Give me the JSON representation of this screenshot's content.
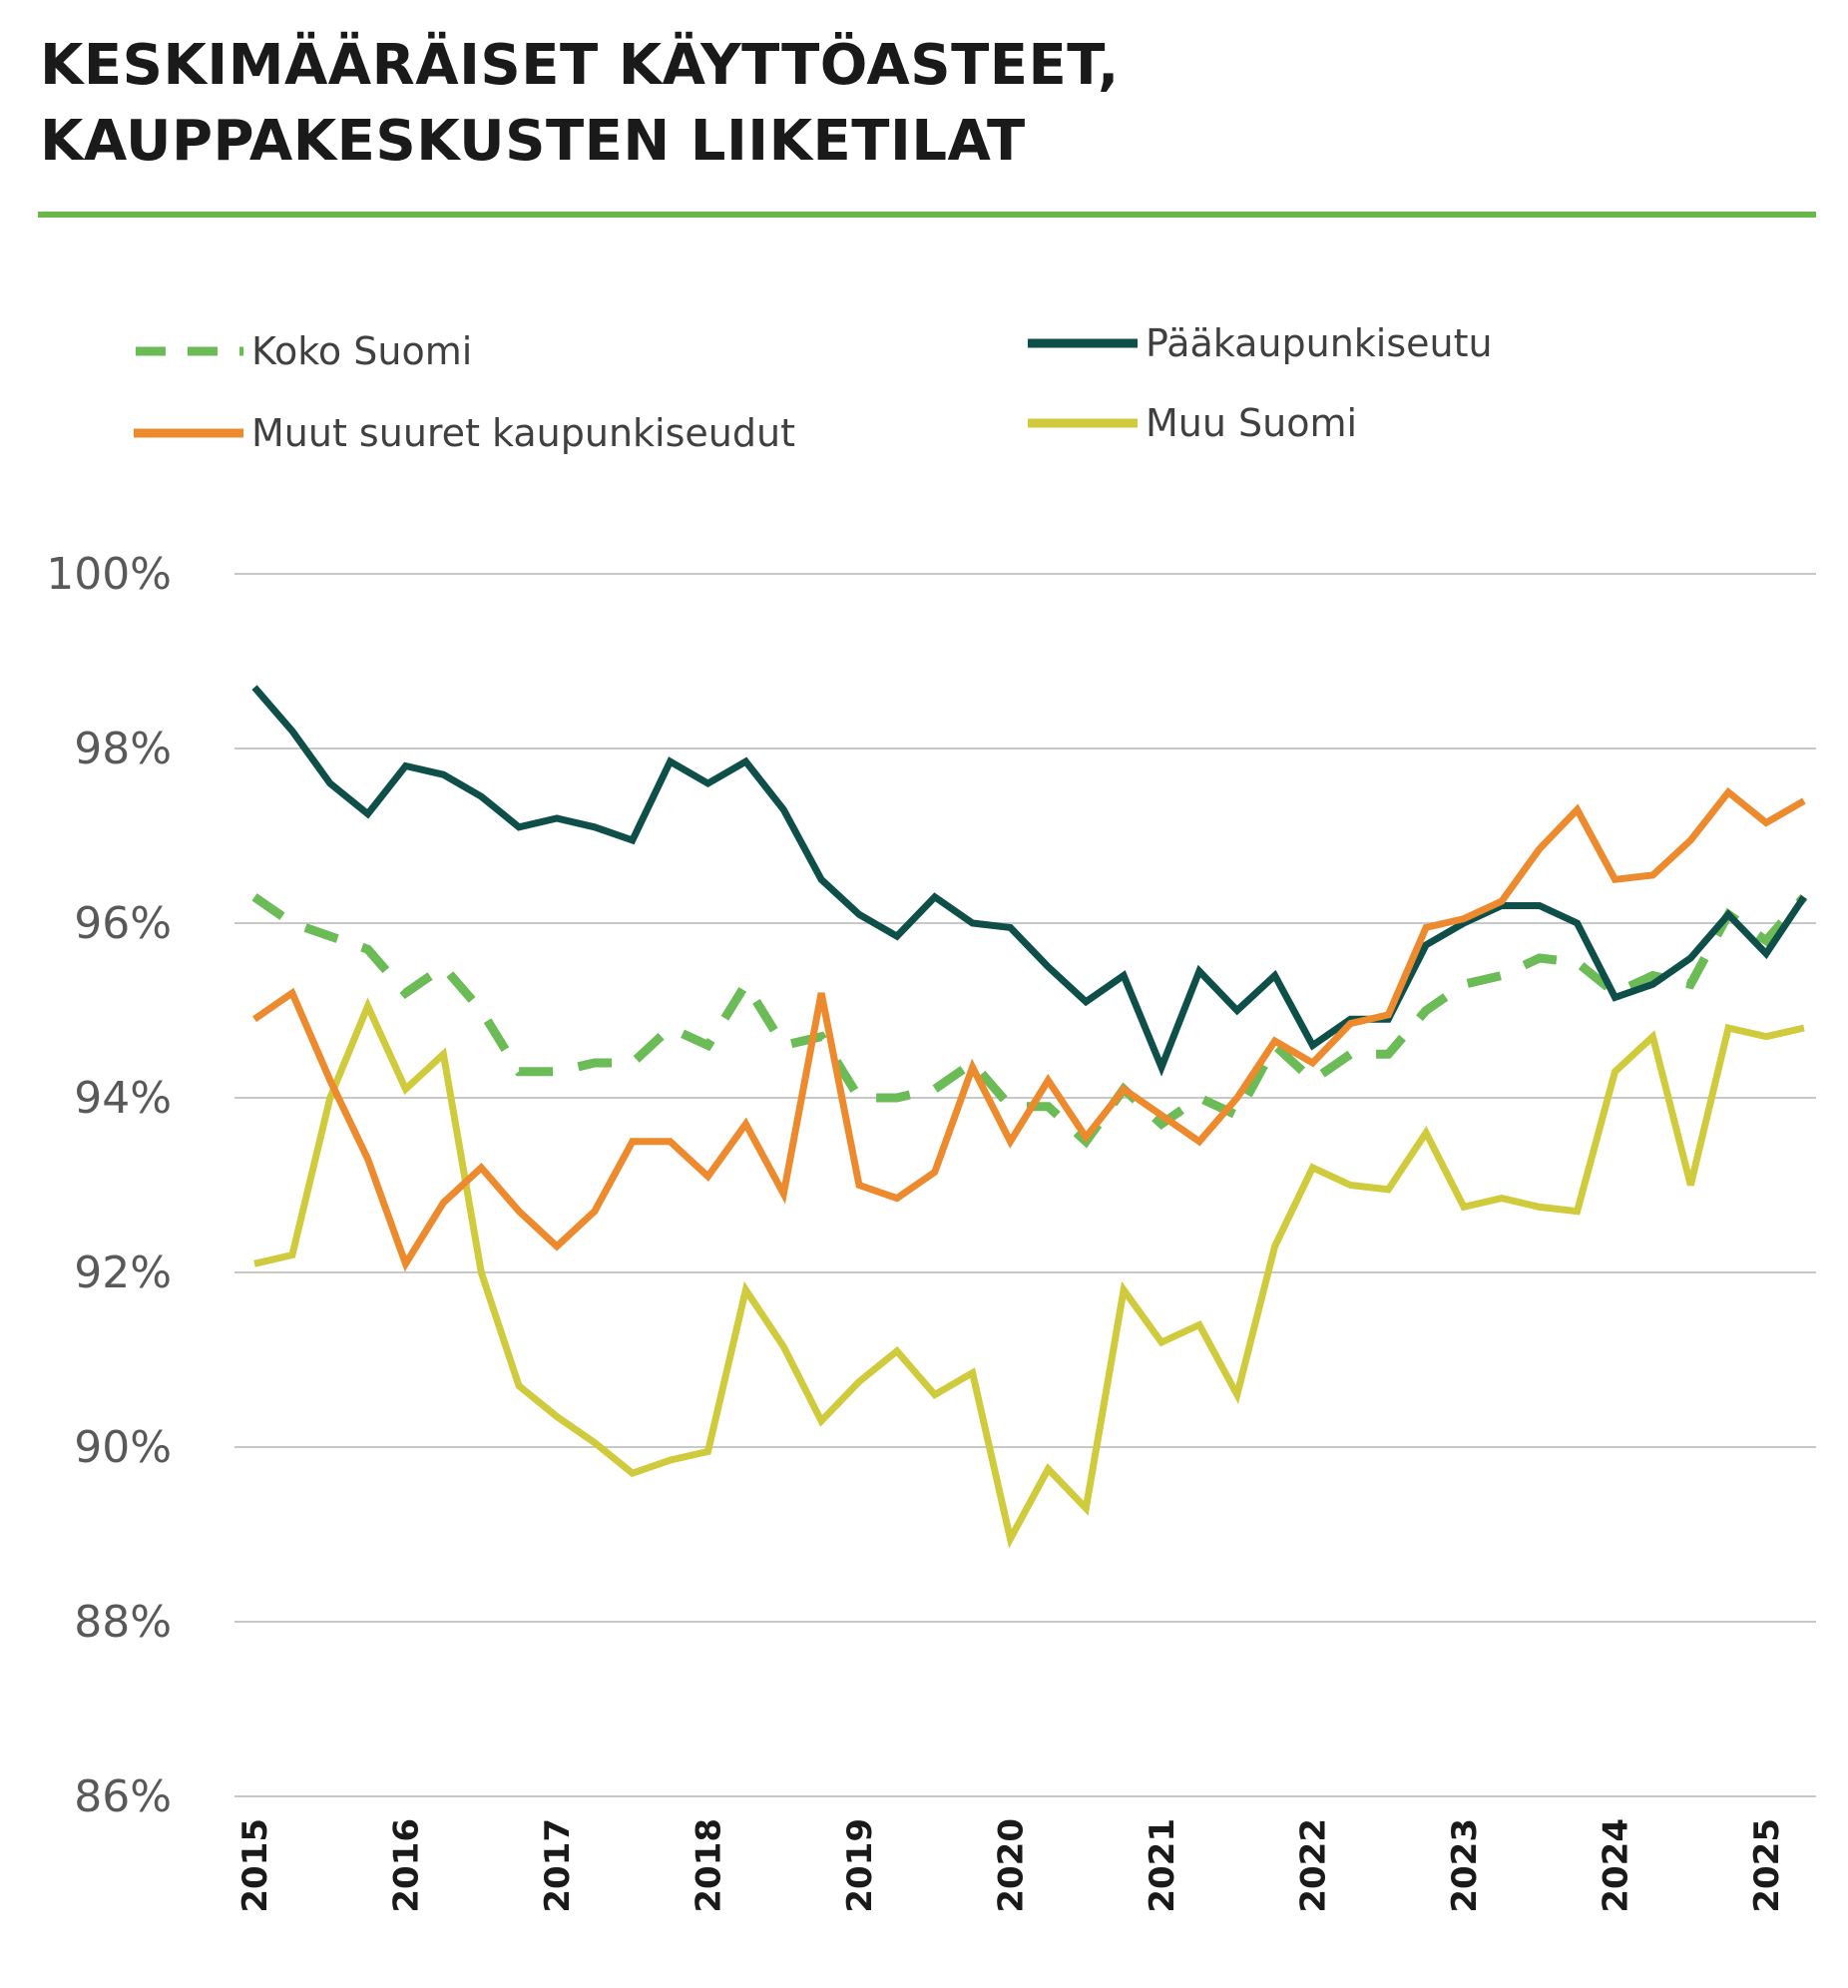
{
  "title_lines": [
    "KESKIMÄÄRÄISET KÄYTTÖASTEET,",
    "KAUPPAKESKUSTEN LIIKETILAT"
  ],
  "colors": {
    "rule": "#6ab84a",
    "grid": "#c8c8c8",
    "koko_suomi": "#6bbb57",
    "paakaupunkiseutu": "#0f4f4a",
    "muut_suuret": "#ec8a2d",
    "muu_suomi": "#cfcb3c"
  },
  "chart_data": {
    "type": "line",
    "title": "KESKIMÄÄRÄISET KÄYTTÖASTEET, KAUPPAKESKUSTEN LIIKETILAT",
    "xlabel": "",
    "ylabel": "",
    "x_tick_labels": [
      "2015",
      "2016",
      "2017",
      "2018",
      "2019",
      "2020",
      "2021",
      "2022",
      "2023",
      "2024",
      "2025"
    ],
    "y_tick_labels": [
      "86%",
      "88%",
      "90%",
      "92%",
      "94%",
      "96%",
      "98%",
      "100%"
    ],
    "ylim": [
      86,
      100
    ],
    "xlim": [
      2015,
      2026.05
    ],
    "grid": true,
    "legend_position": "top",
    "series": [
      {
        "name": "Koko Suomi",
        "key": "koko_suomi",
        "style": "dashed",
        "x": [
          2015.0,
          2015.25,
          2015.75,
          2016.0,
          2016.25,
          2016.5,
          2016.75,
          2017.0,
          2017.25,
          2017.5,
          2017.75,
          2018.0,
          2018.25,
          2018.5,
          2018.75,
          2019.0,
          2019.25,
          2019.5,
          2019.75,
          2020.0,
          2020.25,
          2020.5,
          2020.75,
          2021.0,
          2021.25,
          2021.5,
          2021.75,
          2022.0,
          2022.25,
          2022.5,
          2022.75,
          2023.0,
          2023.25,
          2023.5,
          2023.75,
          2024.0,
          2024.25,
          2024.5,
          2024.75,
          2025.0,
          2025.25
        ],
        "values": [
          96.3,
          96.0,
          95.7,
          95.2,
          95.5,
          95.0,
          94.3,
          94.3,
          94.4,
          94.4,
          94.8,
          94.6,
          95.3,
          94.6,
          94.7,
          94.0,
          94.0,
          94.1,
          94.4,
          93.9,
          93.9,
          93.5,
          94.1,
          93.7,
          94.0,
          93.8,
          94.6,
          94.2,
          94.5,
          94.5,
          95.0,
          95.3,
          95.4,
          95.6,
          95.55,
          95.2,
          95.4,
          95.3,
          96.1,
          95.8,
          96.3
        ]
      },
      {
        "name": "Pääkaupunkiseutu",
        "key": "paakaupunkiseutu",
        "style": "solid",
        "x": [
          2015.0,
          2015.25,
          2015.5,
          2015.75,
          2016.0,
          2016.25,
          2016.5,
          2016.75,
          2017.0,
          2017.25,
          2017.5,
          2017.75,
          2018.0,
          2018.25,
          2018.5,
          2018.75,
          2019.0,
          2019.25,
          2019.5,
          2019.75,
          2020.0,
          2020.25,
          2020.5,
          2020.75,
          2021.0,
          2021.25,
          2021.5,
          2021.75,
          2022.0,
          2022.25,
          2022.5,
          2022.75,
          2023.0,
          2023.25,
          2023.5,
          2023.75,
          2024.0,
          2024.25,
          2024.5,
          2024.75,
          2025.0,
          2025.25
        ],
        "values": [
          98.7,
          98.2,
          97.6,
          97.25,
          97.8,
          97.7,
          97.45,
          97.1,
          97.2,
          97.1,
          96.95,
          97.85,
          97.6,
          97.85,
          97.3,
          96.5,
          96.1,
          95.85,
          96.3,
          96.0,
          95.95,
          95.5,
          95.1,
          95.4,
          94.35,
          95.45,
          95.0,
          95.4,
          94.6,
          94.9,
          94.9,
          95.75,
          96.0,
          96.2,
          96.2,
          96.0,
          95.15,
          95.3,
          95.6,
          96.1,
          95.65,
          96.3
        ]
      },
      {
        "name": "Muut suuret kaupunkiseudut",
        "key": "muut_suuret",
        "style": "solid",
        "x": [
          2015.0,
          2015.25,
          2015.5,
          2015.75,
          2016.0,
          2016.25,
          2016.5,
          2016.75,
          2017.0,
          2017.25,
          2017.5,
          2017.75,
          2018.0,
          2018.25,
          2018.5,
          2018.75,
          2019.0,
          2019.25,
          2019.5,
          2019.75,
          2020.0,
          2020.25,
          2020.5,
          2020.75,
          2021.0,
          2021.25,
          2021.5,
          2021.75,
          2022.0,
          2022.25,
          2022.5,
          2022.75,
          2023.0,
          2023.25,
          2023.5,
          2023.75,
          2024.0,
          2024.25,
          2024.5,
          2024.75,
          2025.0,
          2025.25
        ],
        "values": [
          94.9,
          95.2,
          94.2,
          93.3,
          92.1,
          92.8,
          93.2,
          92.7,
          92.3,
          92.7,
          93.5,
          93.5,
          93.1,
          93.7,
          92.9,
          95.2,
          93.0,
          92.85,
          93.15,
          94.35,
          93.5,
          94.2,
          93.55,
          94.1,
          93.8,
          93.5,
          94.0,
          94.65,
          94.4,
          94.85,
          94.95,
          95.95,
          96.05,
          96.25,
          96.85,
          97.3,
          96.5,
          96.55,
          96.95,
          97.5,
          97.15,
          97.4
        ]
      },
      {
        "name": "Muu Suomi",
        "key": "muu_suomi",
        "style": "solid",
        "x": [
          2015.0,
          2015.25,
          2015.5,
          2015.75,
          2016.0,
          2016.25,
          2016.5,
          2016.75,
          2017.0,
          2017.25,
          2017.5,
          2017.75,
          2018.0,
          2018.25,
          2018.5,
          2018.75,
          2019.0,
          2019.25,
          2019.5,
          2019.75,
          2020.0,
          2020.25,
          2020.5,
          2020.75,
          2021.0,
          2021.25,
          2021.5,
          2021.75,
          2022.0,
          2022.25,
          2022.5,
          2022.75,
          2023.0,
          2023.25,
          2023.5,
          2023.75,
          2024.0,
          2024.25,
          2024.5,
          2024.75,
          2025.0,
          2025.25
        ],
        "values": [
          92.1,
          92.2,
          94.0,
          95.05,
          94.1,
          94.5,
          92.0,
          90.7,
          90.35,
          90.05,
          89.7,
          89.85,
          89.95,
          91.8,
          91.15,
          90.3,
          90.75,
          91.1,
          90.6,
          90.85,
          88.95,
          89.75,
          89.3,
          91.8,
          91.2,
          91.4,
          90.6,
          92.3,
          93.2,
          93.0,
          92.95,
          93.6,
          92.75,
          92.85,
          92.75,
          92.7,
          94.3,
          94.7,
          93.0,
          94.8,
          94.7,
          94.8
        ]
      }
    ]
  }
}
